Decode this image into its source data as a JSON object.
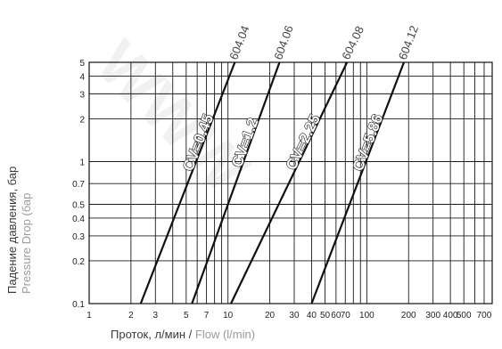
{
  "chart_data": {
    "type": "line",
    "xlabel_ru": "Проток, л/мин",
    "xlabel_sep": " / ",
    "xlabel_en": "Flow (l/min)",
    "ylabel_ru": "Падение давления, бар",
    "ylabel_en": "Pressure Drop (бар",
    "x_scale": "log",
    "y_scale": "log",
    "xlim": [
      1,
      800
    ],
    "ylim": [
      0.1,
      5
    ],
    "grid": true,
    "x_ticks": [
      1,
      2,
      3,
      4,
      5,
      6,
      7,
      8,
      9,
      10,
      20,
      30,
      40,
      50,
      60,
      70,
      80,
      90,
      100,
      200,
      300,
      400,
      500,
      600,
      700,
      800
    ],
    "x_tick_labels": [
      {
        "value": 1,
        "label": "1"
      },
      {
        "value": 2,
        "label": "2"
      },
      {
        "value": 3,
        "label": "3"
      },
      {
        "value": 5,
        "label": "5"
      },
      {
        "value": 7,
        "label": "7"
      },
      {
        "value": 10,
        "label": "10"
      },
      {
        "value": 20,
        "label": "20"
      },
      {
        "value": 30,
        "label": "30"
      },
      {
        "value": 40,
        "label": "40"
      },
      {
        "value": 50,
        "label": "50"
      },
      {
        "value": 60,
        "label": "60"
      },
      {
        "value": 70,
        "label": "70"
      },
      {
        "value": 100,
        "label": "100"
      },
      {
        "value": 200,
        "label": "200"
      },
      {
        "value": 300,
        "label": "300"
      },
      {
        "value": 400,
        "label": "400"
      },
      {
        "value": 500,
        "label": "500"
      },
      {
        "value": 700,
        "label": "700"
      }
    ],
    "y_ticks": [
      0.1,
      0.2,
      0.3,
      0.4,
      0.5,
      0.7,
      1,
      2,
      3,
      4,
      5
    ],
    "y_tick_labels": [
      "0.1",
      "0.2",
      "0.3",
      "0.4",
      "0.5",
      "0.7",
      "1",
      "2",
      "3",
      "4",
      "5"
    ],
    "series": [
      {
        "name": "604.04",
        "cv_label": "CV=0.45",
        "points": [
          [
            2.35,
            0.1
          ],
          [
            11.2,
            5
          ]
        ]
      },
      {
        "name": "604.06",
        "cv_label": "CV=1.2",
        "points": [
          [
            5.5,
            0.1
          ],
          [
            23.5,
            5
          ]
        ]
      },
      {
        "name": "604.08",
        "cv_label": "CV=2.25",
        "points": [
          [
            10.5,
            0.1
          ],
          [
            72,
            5
          ]
        ]
      },
      {
        "name": "604.12",
        "cv_label": "CV=5.86",
        "points": [
          [
            40,
            0.1
          ],
          [
            185,
            5
          ]
        ]
      }
    ]
  },
  "watermark": "WWW"
}
